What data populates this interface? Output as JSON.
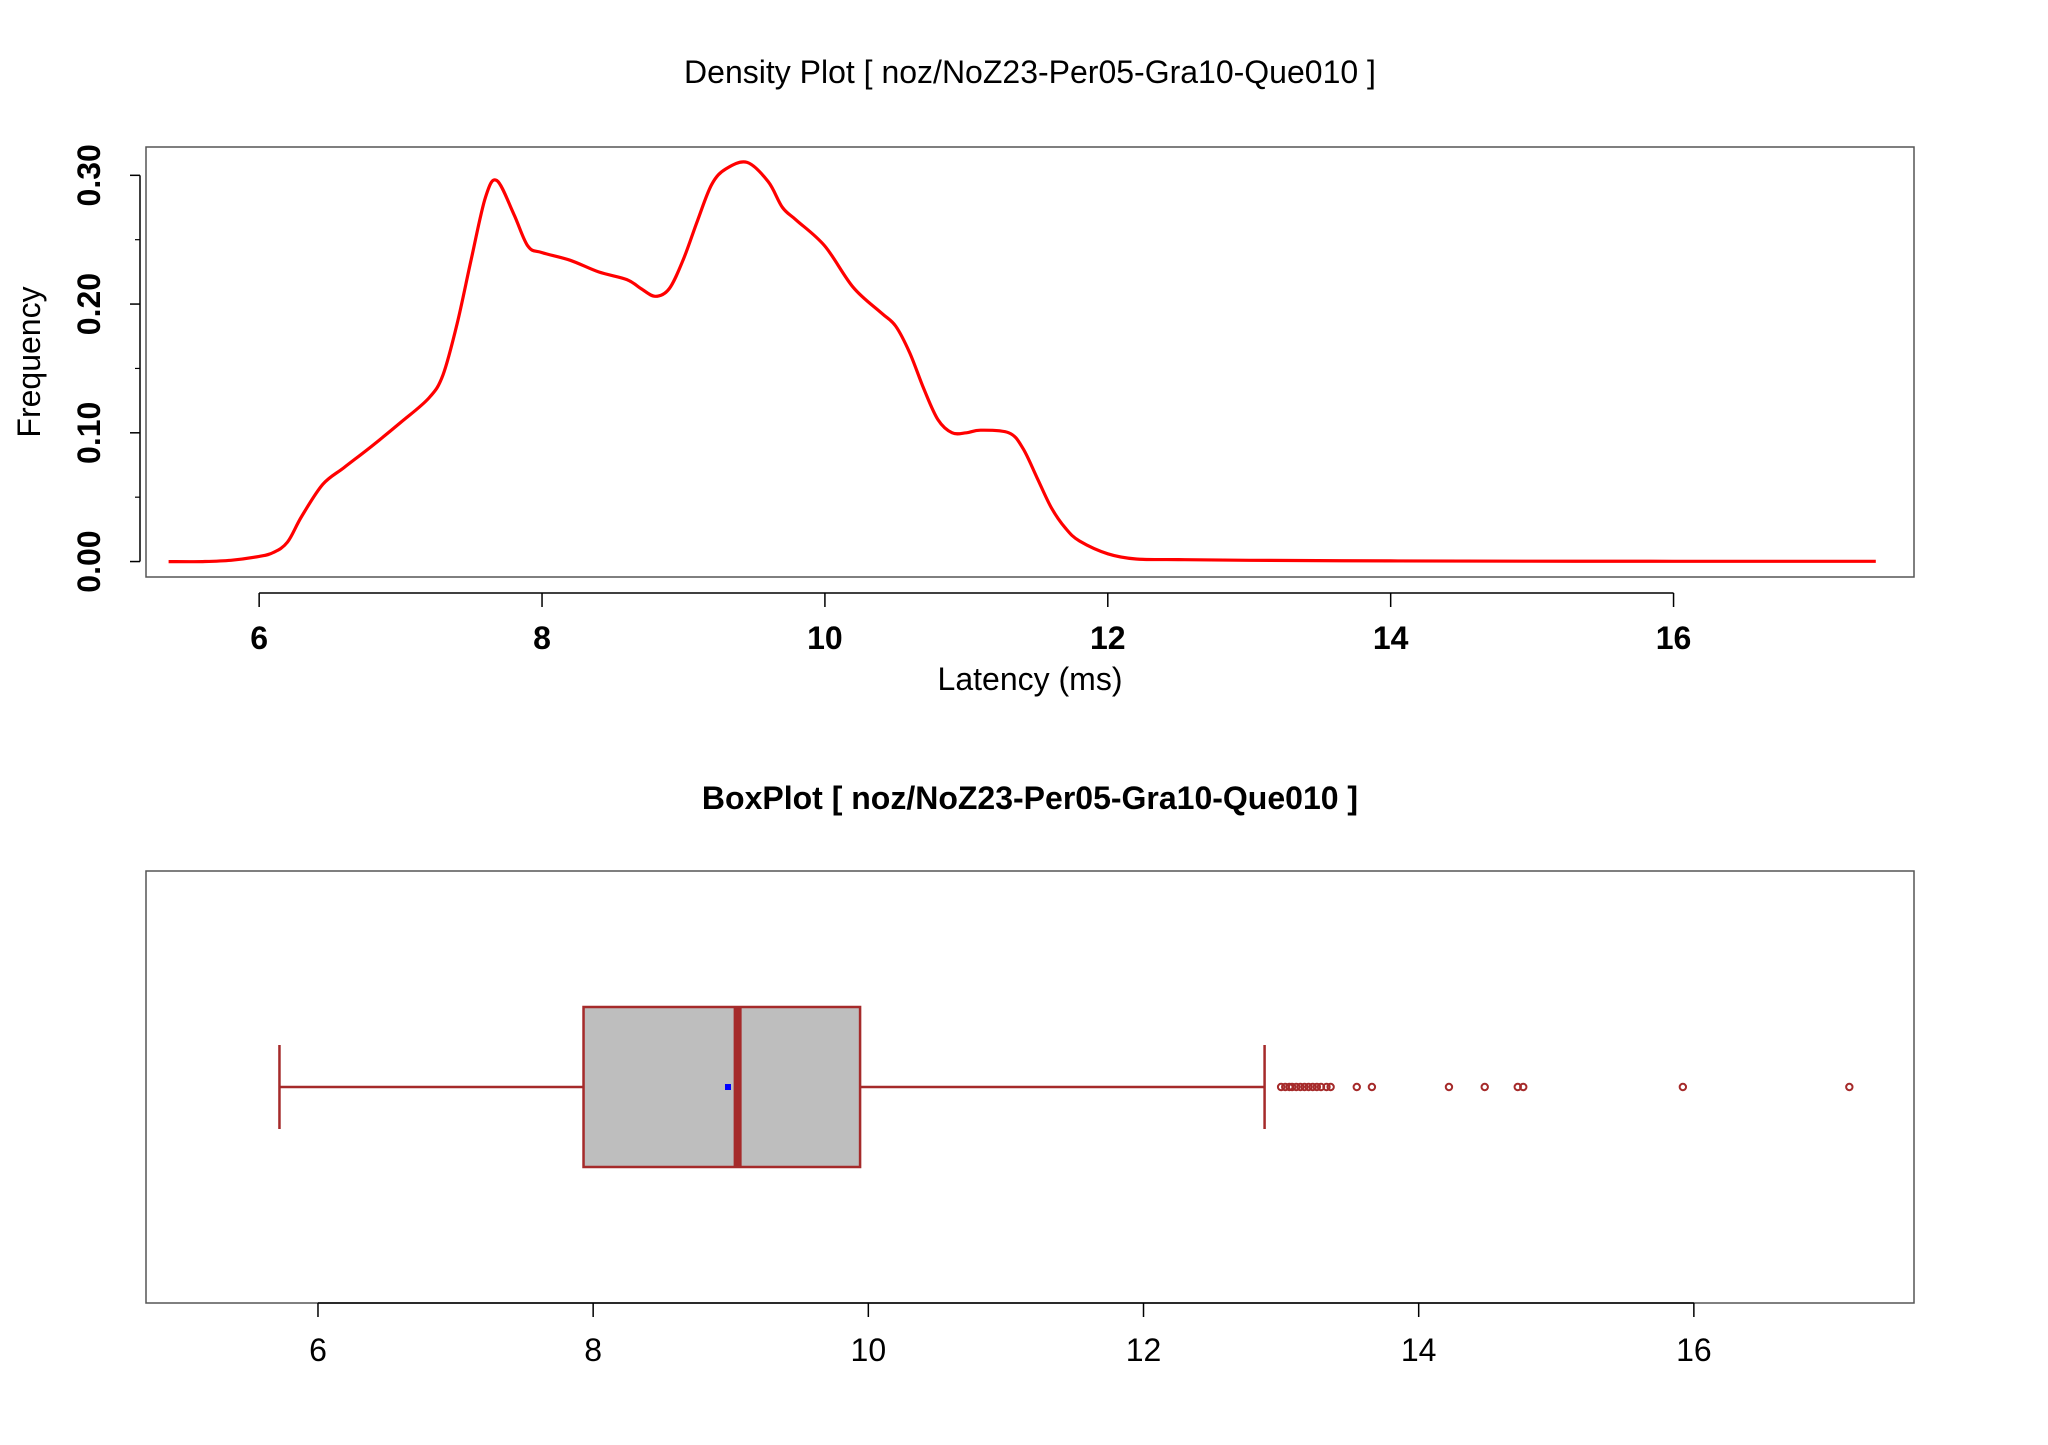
{
  "colors": {
    "density_line": "#ff0000",
    "box_stroke": "#a52a2a",
    "box_fill": "#bebebe",
    "mean_point": "#0000ff",
    "frame": "#555555",
    "text": "#000000"
  },
  "chart_data": [
    {
      "type": "line",
      "title": "Density Plot [ noz/NoZ23-Per05-Gra10-Que010 ]",
      "xlabel": "Latency (ms)",
      "ylabel": "Frequency",
      "xlim": [
        5.2,
        17.7
      ],
      "ylim": [
        -0.012,
        0.322
      ],
      "x_ticks": [
        6,
        8,
        10,
        12,
        14,
        16
      ],
      "x_tick_labels": [
        "6",
        "8",
        "10",
        "12",
        "14",
        "16"
      ],
      "y_ticks": [
        0.0,
        0.1,
        0.2,
        0.3
      ],
      "y_tick_labels": [
        "0.00",
        "0.10",
        "0.20",
        "0.30"
      ],
      "y_minor_ticks": [
        0.05,
        0.15,
        0.25
      ],
      "grid": false,
      "series": [
        {
          "x": [
            5.36,
            5.6,
            5.8,
            6.0,
            6.1,
            6.2,
            6.3,
            6.45,
            6.6,
            6.8,
            7.0,
            7.2,
            7.3,
            7.4,
            7.5,
            7.6,
            7.68,
            7.8,
            7.9,
            8.0,
            8.2,
            8.4,
            8.6,
            8.7,
            8.8,
            8.9,
            9.0,
            9.1,
            9.2,
            9.3,
            9.45,
            9.6,
            9.7,
            9.8,
            10.0,
            10.2,
            10.4,
            10.5,
            10.6,
            10.7,
            10.8,
            10.9,
            11.0,
            11.1,
            11.3,
            11.4,
            11.5,
            11.6,
            11.7,
            11.8,
            12.0,
            12.2,
            12.5,
            13.0,
            14.0,
            15.0,
            16.0,
            17.43
          ],
          "y": [
            0.0,
            0.0,
            0.001,
            0.004,
            0.007,
            0.015,
            0.035,
            0.06,
            0.073,
            0.09,
            0.108,
            0.127,
            0.145,
            0.185,
            0.235,
            0.283,
            0.296,
            0.27,
            0.245,
            0.24,
            0.234,
            0.225,
            0.219,
            0.212,
            0.206,
            0.212,
            0.235,
            0.265,
            0.293,
            0.305,
            0.31,
            0.295,
            0.275,
            0.265,
            0.245,
            0.213,
            0.193,
            0.183,
            0.162,
            0.134,
            0.11,
            0.1,
            0.1,
            0.102,
            0.1,
            0.088,
            0.065,
            0.042,
            0.026,
            0.016,
            0.006,
            0.002,
            0.0015,
            0.001,
            0.0005,
            0.0003,
            0.0002,
            0.0002
          ]
        }
      ]
    },
    {
      "type": "box",
      "title": "BoxPlot [ noz/NoZ23-Per05-Gra10-Que010 ]",
      "xlim": [
        4.75,
        17.6
      ],
      "x_ticks": [
        6,
        8,
        10,
        12,
        14,
        16
      ],
      "x_tick_labels": [
        "6",
        "8",
        "10",
        "12",
        "14",
        "16"
      ],
      "whisker_low": 5.72,
      "q1": 7.93,
      "median": 9.05,
      "q3": 9.94,
      "whisker_high": 12.88,
      "mean": 8.98,
      "outliers": [
        13.0,
        13.03,
        13.06,
        13.08,
        13.11,
        13.14,
        13.17,
        13.2,
        13.23,
        13.26,
        13.29,
        13.33,
        13.36,
        13.55,
        13.66,
        14.22,
        14.48,
        14.72,
        14.76,
        15.92,
        17.13
      ]
    }
  ]
}
